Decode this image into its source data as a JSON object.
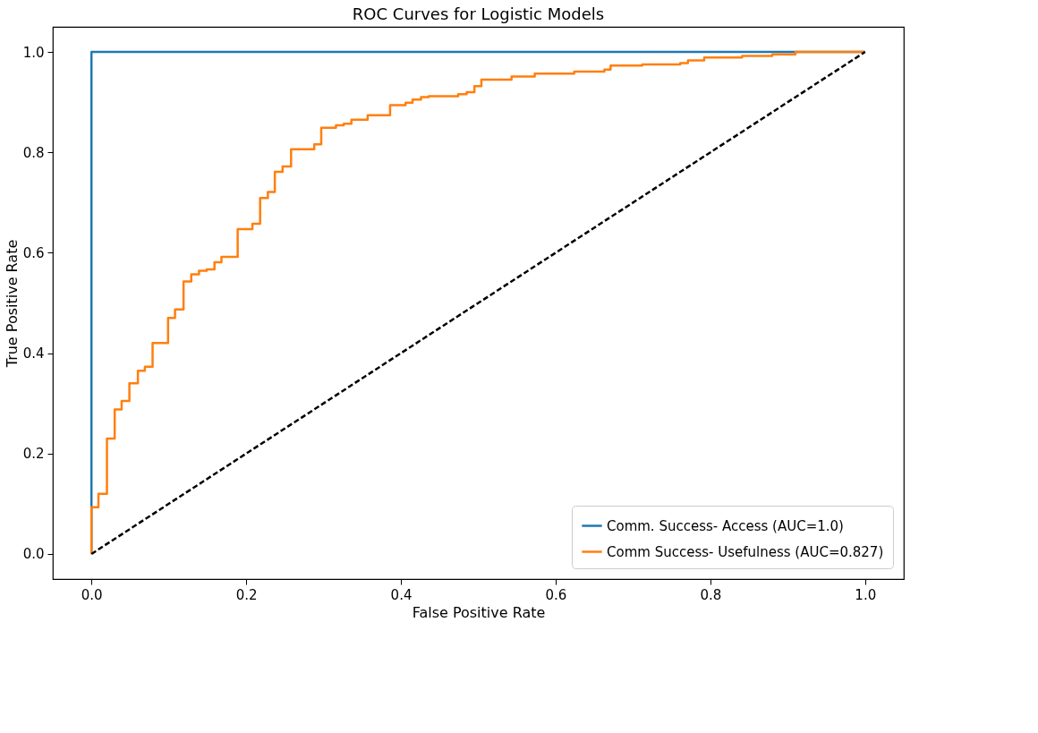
{
  "chart_data": {
    "type": "step",
    "title": "ROC Curves for Logistic Models",
    "xlabel": "False Positive Rate",
    "ylabel": "True Positive Rate",
    "xlim": [
      -0.05,
      1.05
    ],
    "ylim": [
      -0.05,
      1.05
    ],
    "xticks": [
      {
        "value": 0,
        "label": "0.0"
      },
      {
        "value": 0.2,
        "label": "0.2"
      },
      {
        "value": 0.4,
        "label": "0.4"
      },
      {
        "value": 0.6,
        "label": "0.6"
      },
      {
        "value": 0.8,
        "label": "0.8"
      },
      {
        "value": 1,
        "label": "1.0"
      }
    ],
    "yticks": [
      {
        "value": 0,
        "label": "0.0"
      },
      {
        "value": 0.2,
        "label": "0.2"
      },
      {
        "value": 0.4,
        "label": "0.4"
      },
      {
        "value": 0.6,
        "label": "0.6"
      },
      {
        "value": 0.8,
        "label": "0.8"
      },
      {
        "value": 1,
        "label": "1.0"
      }
    ],
    "grid": false,
    "legend": "bottom right",
    "marker": "none",
    "series": [
      {
        "name": "Comm. Success- Access (AUC=1.0)",
        "color": "#1f77b4",
        "x": [
          0,
          0,
          1
        ],
        "values": [
          0,
          1,
          1
        ]
      },
      {
        "name": "Comm Success- Usefulness (AUC=0.827)",
        "color": "#ff7f0e",
        "x": [
          0,
          0,
          0.009,
          0.02,
          0.03,
          0.039,
          0.049,
          0.06,
          0.069,
          0.079,
          0.099,
          0.108,
          0.119,
          0.129,
          0.139,
          0.149,
          0.159,
          0.168,
          0.189,
          0.208,
          0.218,
          0.228,
          0.237,
          0.247,
          0.258,
          0.288,
          0.297,
          0.316,
          0.326,
          0.336,
          0.357,
          0.386,
          0.406,
          0.415,
          0.426,
          0.436,
          0.474,
          0.485,
          0.495,
          0.504,
          0.543,
          0.573,
          0.624,
          0.663,
          0.671,
          0.712,
          0.761,
          0.771,
          0.792,
          0.841,
          0.88,
          0.91,
          1.0
        ],
        "values": [
          0,
          0.093,
          0.12,
          0.23,
          0.288,
          0.305,
          0.34,
          0.365,
          0.373,
          0.42,
          0.47,
          0.487,
          0.543,
          0.557,
          0.564,
          0.567,
          0.581,
          0.592,
          0.647,
          0.658,
          0.709,
          0.721,
          0.761,
          0.772,
          0.806,
          0.816,
          0.849,
          0.854,
          0.857,
          0.865,
          0.874,
          0.894,
          0.899,
          0.905,
          0.91,
          0.912,
          0.916,
          0.92,
          0.932,
          0.945,
          0.951,
          0.957,
          0.961,
          0.965,
          0.973,
          0.975,
          0.978,
          0.983,
          0.989,
          0.992,
          0.995,
          1.0,
          1.0
        ]
      },
      {
        "color": "#000000",
        "type": "line",
        "line_style": "dashed",
        "x": [
          0,
          1
        ],
        "values": [
          0,
          1
        ]
      }
    ]
  }
}
